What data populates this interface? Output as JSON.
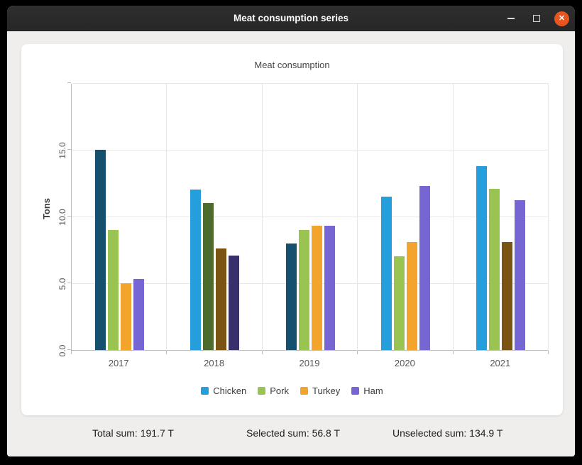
{
  "window": {
    "title": "Meat consumption series",
    "close_glyph": "✕"
  },
  "chart_data": {
    "type": "bar",
    "title": "Meat consumption",
    "xlabel": "",
    "ylabel": "Tons",
    "categories": [
      "2017",
      "2018",
      "2019",
      "2020",
      "2021"
    ],
    "ylim": [
      0,
      20
    ],
    "yticks": [
      0,
      5,
      10,
      15
    ],
    "ytick_labels": [
      "0.0",
      "5.0",
      "10.0",
      "15.0"
    ],
    "grid": true,
    "legend_position": "bottom",
    "series": [
      {
        "name": "Chicken",
        "color": "#249FDB",
        "selected_color": "#15506F",
        "values": [
          15.0,
          12.0,
          8.0,
          11.5,
          13.8
        ],
        "selected": [
          true,
          false,
          true,
          false,
          false
        ]
      },
      {
        "name": "Pork",
        "color": "#9AC452",
        "selected_color": "#4C6B2D",
        "values": [
          9.0,
          11.0,
          9.0,
          7.0,
          12.1
        ],
        "selected": [
          false,
          true,
          false,
          false,
          false
        ]
      },
      {
        "name": "Turkey",
        "color": "#F3A42D",
        "selected_color": "#7B5413",
        "values": [
          5.0,
          7.6,
          9.3,
          8.1,
          8.1
        ],
        "selected": [
          false,
          true,
          false,
          false,
          true
        ]
      },
      {
        "name": "Ham",
        "color": "#7566D4",
        "selected_color": "#37306B",
        "values": [
          5.3,
          7.1,
          9.3,
          12.3,
          11.2
        ],
        "selected": [
          false,
          true,
          false,
          false,
          false
        ]
      }
    ]
  },
  "footer": {
    "total": "Total sum: 191.7 T",
    "selected": "Selected sum: 56.8 T",
    "unselected": "Unselected sum: 134.9 T"
  }
}
